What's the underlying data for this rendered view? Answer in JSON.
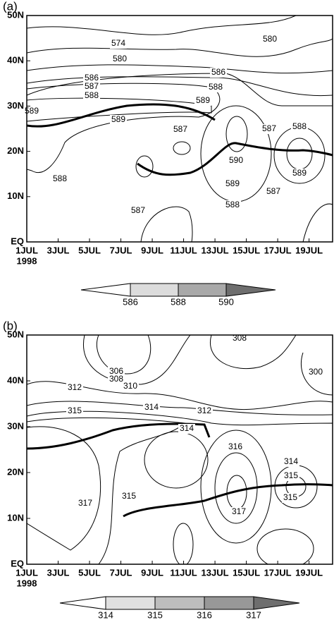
{
  "chart_data": [
    {
      "type": "contour",
      "panel_label": "(a)",
      "xlim": [
        1,
        20.5
      ],
      "xticks": [
        {
          "value": 1,
          "label": "1JUL"
        },
        {
          "value": 3,
          "label": "3JUL"
        },
        {
          "value": 5,
          "label": "5JUL"
        },
        {
          "value": 7,
          "label": "7JUL"
        },
        {
          "value": 9,
          "label": "9JUL"
        },
        {
          "value": 11,
          "label": "11JUL"
        },
        {
          "value": 13,
          "label": "13JUL"
        },
        {
          "value": 15,
          "label": "15JUL"
        },
        {
          "value": 17,
          "label": "17JUL"
        },
        {
          "value": 19,
          "label": "19JUL"
        }
      ],
      "x_year": "1998",
      "ylim": [
        0,
        50
      ],
      "yticks": [
        {
          "value": 0,
          "label": "EQ"
        },
        {
          "value": 10,
          "label": "10N"
        },
        {
          "value": 20,
          "label": "20N"
        },
        {
          "value": 30,
          "label": "30N"
        },
        {
          "value": 40,
          "label": "40N"
        },
        {
          "value": 50,
          "label": "50N"
        }
      ],
      "contour_labels": [
        574,
        580,
        580,
        586,
        587,
        588,
        589,
        589,
        586,
        588,
        589,
        587,
        587,
        588,
        590,
        589,
        589,
        588,
        587,
        588,
        587
      ],
      "colorbar": {
        "levels": [
          586,
          588,
          590
        ],
        "colors": [
          "#ffffff",
          "#dcdcdc",
          "#a9a9a9",
          "#6e6e6e"
        ]
      }
    },
    {
      "type": "contour",
      "panel_label": "(b)",
      "xlim": [
        1,
        20.5
      ],
      "xticks": [
        {
          "value": 1,
          "label": "1JUL"
        },
        {
          "value": 3,
          "label": "3JUL"
        },
        {
          "value": 5,
          "label": "5JUL"
        },
        {
          "value": 7,
          "label": "7JUL"
        },
        {
          "value": 9,
          "label": "9JUL"
        },
        {
          "value": 11,
          "label": "11JUL"
        },
        {
          "value": 13,
          "label": "13JUL"
        },
        {
          "value": 15,
          "label": "15JUL"
        },
        {
          "value": 17,
          "label": "17JUL"
        },
        {
          "value": 19,
          "label": "19JUL"
        }
      ],
      "x_year": "1998",
      "ylim": [
        0,
        50
      ],
      "yticks": [
        {
          "value": 0,
          "label": "EQ"
        },
        {
          "value": 10,
          "label": "10N"
        },
        {
          "value": 20,
          "label": "20N"
        },
        {
          "value": 30,
          "label": "30N"
        },
        {
          "value": 40,
          "label": "40N"
        },
        {
          "value": 50,
          "label": "50N"
        }
      ],
      "contour_labels": [
        312,
        306,
        308,
        310,
        308,
        300,
        312,
        315,
        314,
        314,
        316,
        314,
        315,
        315,
        317,
        315,
        317
      ],
      "colorbar": {
        "levels": [
          314,
          315,
          316,
          317
        ],
        "colors": [
          "#ffffff",
          "#e0e0e0",
          "#bdbdbd",
          "#989898",
          "#6e6e6e"
        ]
      }
    }
  ]
}
